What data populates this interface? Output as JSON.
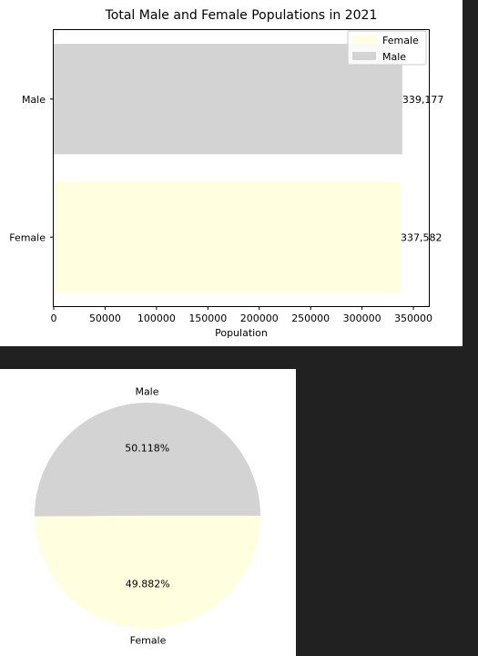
{
  "chart_data": [
    {
      "type": "bar",
      "orientation": "horizontal",
      "title": "Total Male and Female Populations in 2021",
      "xlabel": "Population",
      "ylabel": "",
      "categories": [
        "Male",
        "Female"
      ],
      "values": [
        339177,
        337582
      ],
      "value_labels": [
        "339,177",
        "337,582"
      ],
      "xlim": [
        0,
        365000
      ],
      "xticks": [
        "0",
        "50000",
        "100000",
        "150000",
        "200000",
        "250000",
        "300000",
        "350000"
      ],
      "colors": [
        "#d3d3d3",
        "#ffffe0"
      ],
      "legend": {
        "placement": "upper-right",
        "entries": [
          {
            "label": "Female",
            "color": "#ffffe0"
          },
          {
            "label": "Male",
            "color": "#d3d3d3"
          }
        ]
      },
      "grid": false
    },
    {
      "type": "pie",
      "labels": [
        "Male",
        "Female"
      ],
      "values": [
        50.118,
        49.882
      ],
      "pct_labels": [
        "50.118%",
        "49.882%"
      ],
      "colors": [
        "#d3d3d3",
        "#ffffe0"
      ]
    }
  ]
}
